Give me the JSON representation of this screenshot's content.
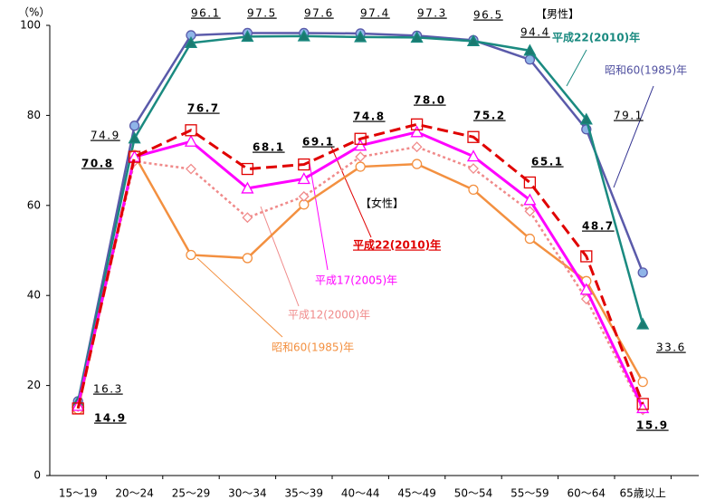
{
  "chart_data": {
    "type": "line",
    "y_label": "（%）",
    "annotations": {
      "male": "【男性】",
      "female": "【女性】"
    },
    "categories": [
      "15～19",
      "20～24",
      "25～29",
      "30～34",
      "35～39",
      "40～44",
      "45～49",
      "50～54",
      "55～59",
      "60～64",
      "65歳以上"
    ],
    "ylim": [
      0,
      100
    ],
    "yticks": [
      0,
      20,
      40,
      60,
      80,
      100
    ],
    "grid": false,
    "series": [
      {
        "name": "昭和60(1985)年",
        "color": "#5a5aaa",
        "marker": "circle",
        "marker_fill": "#8fb4e8",
        "dash": "solid",
        "values": [
          16.5,
          77.7,
          97.8,
          98.3,
          98.3,
          98.2,
          97.7,
          96.7,
          92.4,
          76.9,
          45.1
        ]
      },
      {
        "name": "平成22(2010)年",
        "color": "#1a8a80",
        "marker": "triangle",
        "marker_fill": "#1a7a70",
        "dash": "solid",
        "values": [
          16.3,
          74.9,
          96.1,
          97.5,
          97.6,
          97.4,
          97.3,
          96.5,
          94.4,
          79.1,
          33.6
        ],
        "value_labels": [
          "16.3",
          "74.9",
          "96.1",
          "97.5",
          "97.6",
          "97.4",
          "97.3",
          "96.5",
          "94.4",
          "79.1",
          "33.6"
        ]
      },
      {
        "name": "昭和60(1985)年",
        "color": "#f39040",
        "marker": "circle",
        "marker_fill": "#ffffff",
        "dash": "solid",
        "values": [
          14.7,
          71.2,
          49.0,
          48.3,
          60.2,
          68.6,
          69.2,
          63.5,
          52.6,
          43.2,
          20.8
        ]
      },
      {
        "name": "平成12(2000)年",
        "color": "#f08a8a",
        "marker": "diamond",
        "marker_fill": "#ffffff",
        "dash": "dotted",
        "values": [
          15.3,
          69.8,
          68.1,
          57.3,
          62.0,
          70.8,
          73.0,
          68.2,
          58.7,
          39.2,
          14.6
        ]
      },
      {
        "name": "平成17(2005)年",
        "color": "#ff00ff",
        "marker": "triangle",
        "marker_fill": "#ffffff",
        "dash": "solid",
        "values": [
          15.5,
          70.8,
          74.2,
          63.8,
          65.9,
          73.3,
          76.3,
          70.9,
          61.2,
          41.3,
          15.0
        ]
      },
      {
        "name": "平成22(2010)年",
        "color": "#e00000",
        "marker": "square",
        "marker_fill": "none",
        "dash": "dashed",
        "values": [
          14.9,
          70.8,
          76.7,
          68.1,
          69.1,
          74.8,
          78.0,
          75.2,
          65.1,
          48.7,
          15.9
        ],
        "value_labels": [
          "14.9",
          "70.8",
          "76.7",
          "68.1",
          "69.1",
          "74.8",
          "78.0",
          "75.2",
          "65.1",
          "48.7",
          "15.9"
        ]
      }
    ]
  }
}
